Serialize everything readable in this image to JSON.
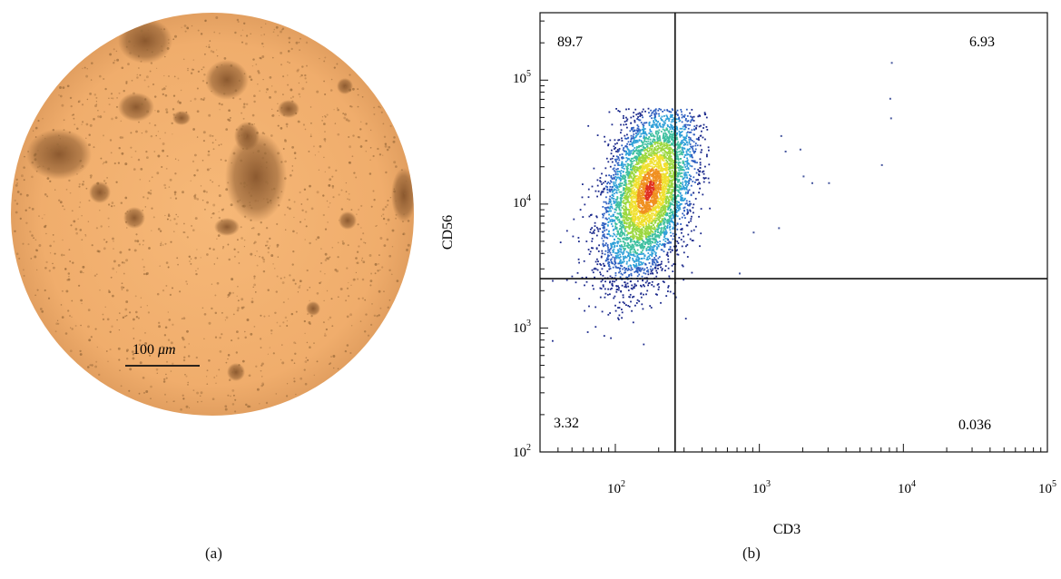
{
  "panel_a": {
    "caption": "(a)",
    "scale_bar_label_num": "100",
    "scale_bar_label_unit": "μm",
    "colors": {
      "background": "#f2b070",
      "cluster": "#8a5a30",
      "cell_dot": "#9a6a3a"
    }
  },
  "panel_b": {
    "caption": "(b)",
    "xlabel": "CD3",
    "ylabel": "CD56",
    "x_ticks": [
      {
        "base": "10",
        "exp": "2"
      },
      {
        "base": "10",
        "exp": "3"
      },
      {
        "base": "10",
        "exp": "4"
      },
      {
        "base": "10",
        "exp": "5"
      }
    ],
    "y_ticks": [
      {
        "base": "10",
        "exp": "2"
      },
      {
        "base": "10",
        "exp": "3"
      },
      {
        "base": "10",
        "exp": "4"
      },
      {
        "base": "10",
        "exp": "5"
      }
    ],
    "quadrant_labels": {
      "upper_left": "89.7",
      "upper_right": "6.93",
      "lower_left": "3.32",
      "lower_right": "0.036"
    }
  },
  "chart_data": {
    "type": "scatter",
    "scale": "log",
    "xlabel": "CD3",
    "ylabel": "CD56",
    "xlim": [
      30,
      100000
    ],
    "ylim": [
      100,
      350000
    ],
    "gates": {
      "x": 260,
      "y": 2500
    },
    "quadrant_percentages": {
      "Q1_upper_left": 89.7,
      "Q2_upper_right": 6.93,
      "Q3_lower_right": 0.036,
      "Q4_lower_left": 3.32
    },
    "population": {
      "center_x": 170,
      "center_y": 13000,
      "points_x_range": [
        35,
        450
      ],
      "points_y_range": [
        170,
        60000
      ]
    },
    "outlier_points": [
      {
        "x": 8200,
        "y": 140000
      },
      {
        "x": 8000,
        "y": 72000
      },
      {
        "x": 8100,
        "y": 50000
      },
      {
        "x": 7000,
        "y": 21000
      },
      {
        "x": 1400,
        "y": 36000
      },
      {
        "x": 1900,
        "y": 28000
      },
      {
        "x": 1500,
        "y": 27000
      },
      {
        "x": 2000,
        "y": 17000
      },
      {
        "x": 2300,
        "y": 15000
      },
      {
        "x": 3000,
        "y": 15000
      },
      {
        "x": 1350,
        "y": 6500
      },
      {
        "x": 900,
        "y": 6000
      },
      {
        "x": 720,
        "y": 2800
      },
      {
        "x": 260,
        "y": 1800
      }
    ],
    "colormap": [
      "#1c2a8c",
      "#2f5fc0",
      "#2fa0d8",
      "#3fc0a0",
      "#9cd840",
      "#f0e030",
      "#f09020",
      "#e03020"
    ]
  }
}
